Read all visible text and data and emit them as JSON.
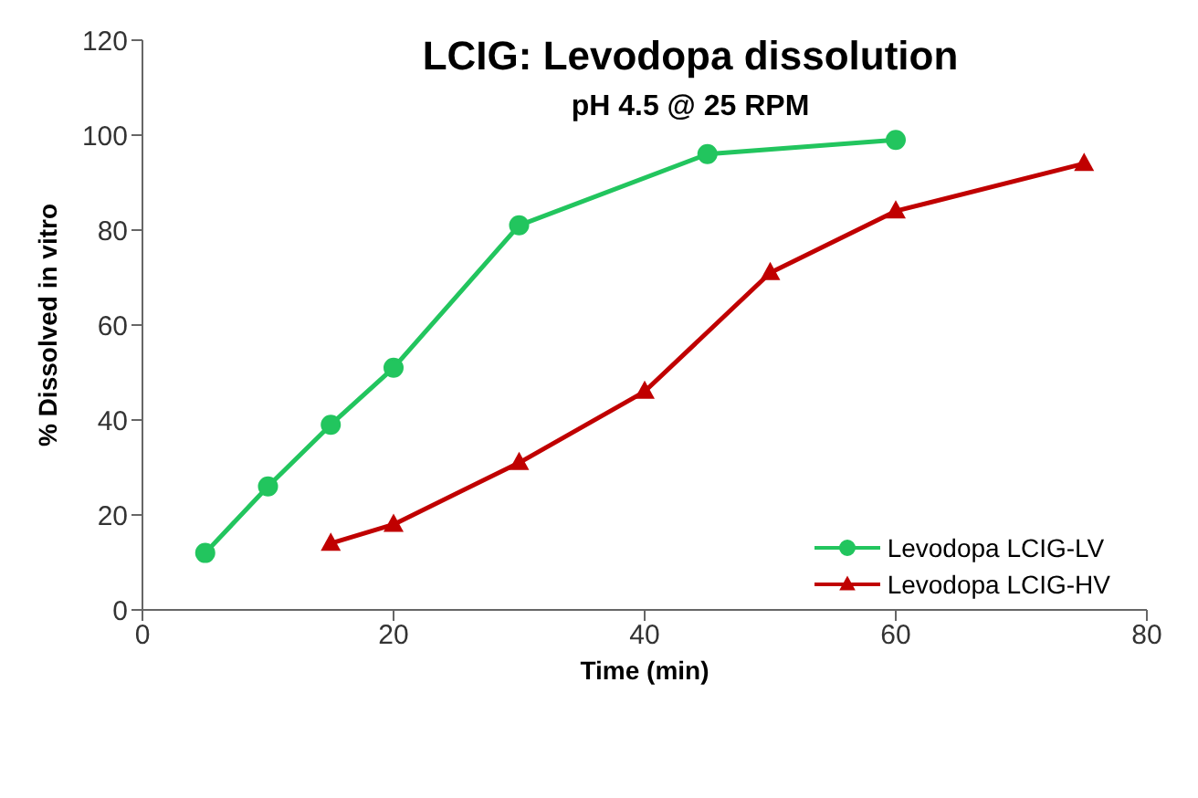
{
  "chart_data": {
    "type": "line",
    "title": "LCIG: Levodopa dissolution",
    "subtitle": "pH 4.5 @ 25 RPM",
    "xlabel": "Time (min)",
    "ylabel": "% Dissolved in vitro",
    "xlim": [
      0,
      80
    ],
    "xticks": [
      0,
      20,
      40,
      60,
      80
    ],
    "ylim": [
      0,
      120
    ],
    "yticks": [
      0,
      20,
      40,
      60,
      80,
      100,
      120
    ],
    "grid": false,
    "legend": "bottom right",
    "line_style": "solid",
    "series": [
      {
        "name": "Levodopa LCIG-LV",
        "color": "#22c55e",
        "marker": "circle",
        "x": [
          5,
          10,
          15,
          20,
          30,
          45,
          60
        ],
        "values": [
          12,
          26,
          39,
          51,
          81,
          96,
          99
        ]
      },
      {
        "name": "Levodopa LCIG-HV",
        "color": "#c00000",
        "marker": "triangle",
        "x": [
          15,
          20,
          30,
          40,
          50,
          60,
          75
        ],
        "values": [
          14,
          18,
          31,
          46,
          71,
          84,
          94
        ]
      }
    ]
  }
}
